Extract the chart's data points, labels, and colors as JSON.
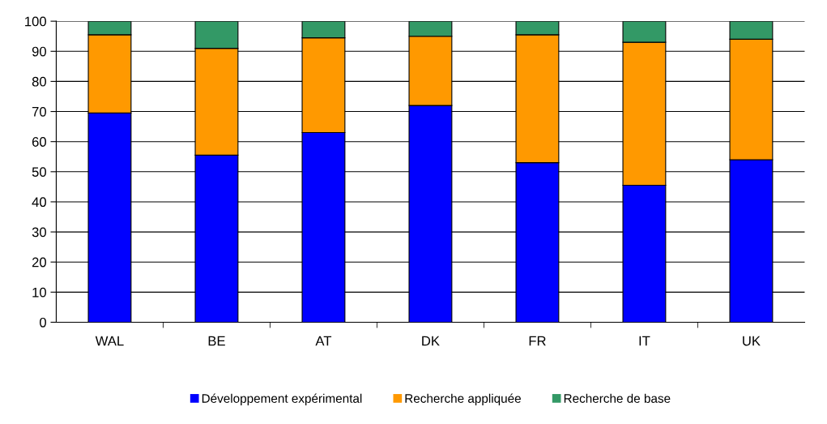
{
  "chart_data": {
    "type": "bar",
    "stacked": true,
    "categories": [
      "WAL",
      "BE",
      "AT",
      "DK",
      "FR",
      "IT",
      "UK"
    ],
    "series": [
      {
        "name": "Développement expérimental",
        "color": "#0000ff",
        "values": [
          69.5,
          55.5,
          63,
          72,
          53,
          45.5,
          54
        ]
      },
      {
        "name": "Recherche appliquée",
        "color": "#ff9900",
        "values": [
          26,
          35.5,
          31.5,
          23,
          42.5,
          47.5,
          40
        ]
      },
      {
        "name": "Recherche de base",
        "color": "#339966",
        "values": [
          4.5,
          9,
          5.5,
          5,
          4.5,
          7,
          6
        ]
      }
    ],
    "ylim": [
      0,
      100
    ],
    "yticks": [
      0,
      10,
      20,
      30,
      40,
      50,
      60,
      70,
      80,
      90,
      100
    ],
    "grid": "y",
    "legend": "bottom"
  }
}
